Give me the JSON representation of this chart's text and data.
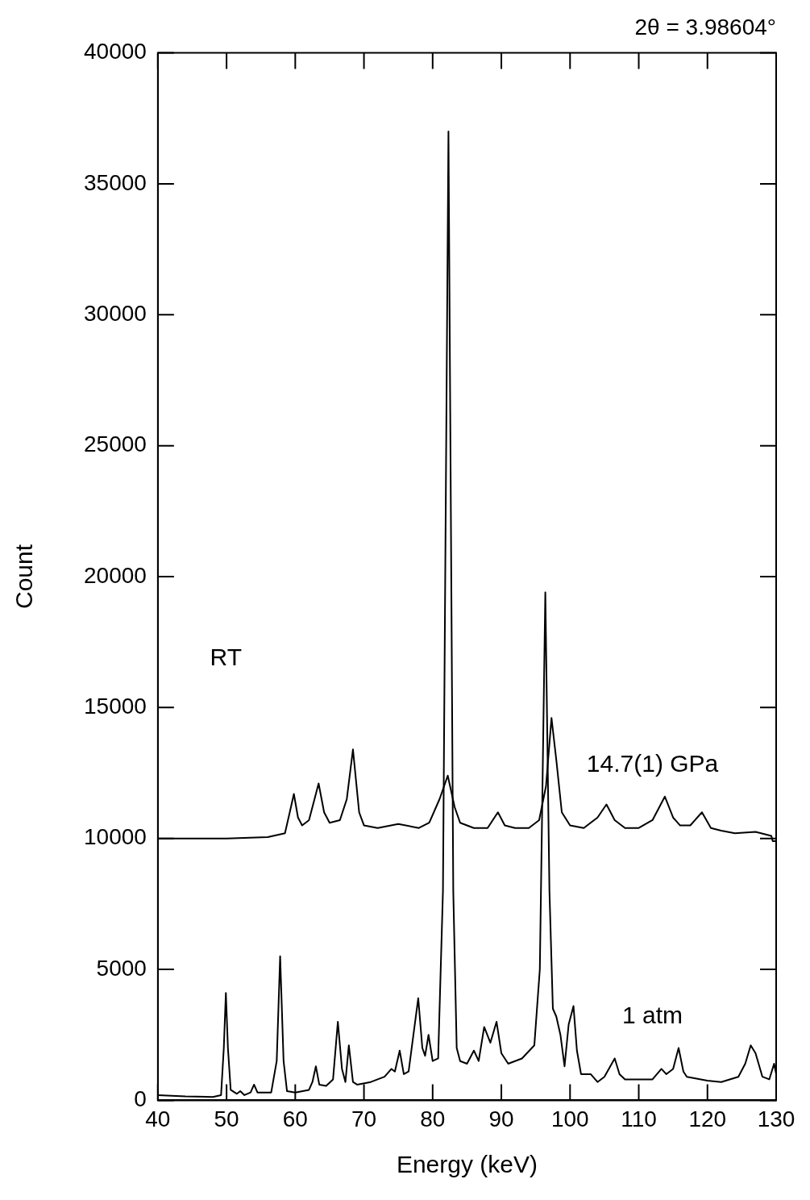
{
  "chart_data": {
    "type": "line",
    "title": "2θ = 3.98604°",
    "xlabel": "Energy (keV)",
    "ylabel": "Count",
    "annotations": [
      "RT"
    ],
    "xlim": [
      40,
      130
    ],
    "xticks": [
      40,
      50,
      60,
      70,
      80,
      90,
      100,
      110,
      120,
      130
    ],
    "ylim": [
      0,
      40000
    ],
    "yticks": [
      0,
      5000,
      10000,
      15000,
      20000,
      25000,
      30000,
      35000,
      40000
    ],
    "grid": false,
    "legend": false,
    "marker": "none",
    "line_style": "solid",
    "series": [
      {
        "name": "14.7(1) GPa",
        "color": "#000000",
        "x": [
          40,
          50,
          56,
          58.5,
          59.2,
          59.8,
          60.4,
          61,
          62,
          63.4,
          64.2,
          65,
          66.5,
          67.5,
          68.4,
          69.3,
          70,
          72,
          75,
          78,
          79.5,
          81,
          82.2,
          83.2,
          84,
          86,
          88,
          89.5,
          90.5,
          92,
          94,
          95.5,
          96.5,
          97.3,
          98,
          98.8,
          100,
          102,
          104,
          105.3,
          106.5,
          108,
          110,
          112,
          113.8,
          115,
          116,
          117.5,
          119.2,
          120.5,
          122,
          124,
          127,
          128.5,
          129.3,
          129.5,
          130
        ],
        "values": [
          10000,
          10000,
          10050,
          10200,
          11000,
          11700,
          10800,
          10500,
          10700,
          12100,
          11000,
          10600,
          10700,
          11500,
          13400,
          11000,
          10500,
          10400,
          10550,
          10400,
          10600,
          11500,
          12400,
          11200,
          10600,
          10400,
          10400,
          11000,
          10500,
          10400,
          10400,
          10700,
          12000,
          14600,
          13000,
          11000,
          10500,
          10400,
          10800,
          11300,
          10700,
          10400,
          10400,
          10700,
          11600,
          10800,
          10500,
          10500,
          11000,
          10400,
          10300,
          10200,
          10250,
          10150,
          10100,
          9900,
          9900
        ]
      },
      {
        "name": "1 atm",
        "color": "#000000",
        "x": [
          40,
          44,
          48,
          49.2,
          49.6,
          49.9,
          50.2,
          50.6,
          51.5,
          52,
          52.6,
          53.5,
          54,
          54.5,
          56.5,
          57.3,
          57.8,
          58.3,
          58.8,
          60,
          62,
          62.5,
          63,
          63.5,
          64.5,
          65.5,
          66.2,
          66.8,
          67.3,
          67.8,
          68.4,
          69,
          71,
          73,
          74,
          74.5,
          75.2,
          75.8,
          76.5,
          77.2,
          77.9,
          78.5,
          78.9,
          79.4,
          80,
          80.8,
          81.5,
          82.3,
          83,
          83.5,
          84,
          85,
          86,
          86.7,
          87.5,
          88.4,
          89.3,
          90,
          91,
          93,
          94.8,
          95.6,
          96.4,
          97,
          97.5,
          98,
          98.6,
          99.2,
          99.8,
          100.5,
          101,
          101.6,
          103,
          104,
          105,
          106.5,
          107.2,
          108,
          110,
          112,
          113.3,
          114,
          115,
          115.8,
          116.5,
          117,
          120,
          122,
          124.5,
          125.5,
          126.3,
          127,
          128,
          129,
          129.7,
          130
        ],
        "values": [
          200,
          150,
          130,
          200,
          2000,
          4100,
          2000,
          400,
          250,
          350,
          200,
          300,
          600,
          300,
          300,
          1500,
          5500,
          1500,
          350,
          300,
          400,
          700,
          1300,
          600,
          550,
          800,
          3000,
          1200,
          700,
          2100,
          700,
          600,
          700,
          900,
          1200,
          1100,
          1900,
          1000,
          1100,
          2500,
          3900,
          2000,
          1700,
          2500,
          1500,
          1600,
          8000,
          37000,
          8000,
          2000,
          1500,
          1400,
          1900,
          1500,
          2800,
          2200,
          3000,
          1800,
          1400,
          1600,
          2100,
          5000,
          19400,
          8000,
          3500,
          3200,
          2500,
          1300,
          2900,
          3600,
          1900,
          1000,
          1000,
          700,
          900,
          1600,
          1000,
          800,
          800,
          800,
          1200,
          1000,
          1200,
          2000,
          1100,
          900,
          750,
          700,
          900,
          1400,
          2100,
          1800,
          900,
          800,
          1400,
          1000
        ]
      }
    ]
  }
}
